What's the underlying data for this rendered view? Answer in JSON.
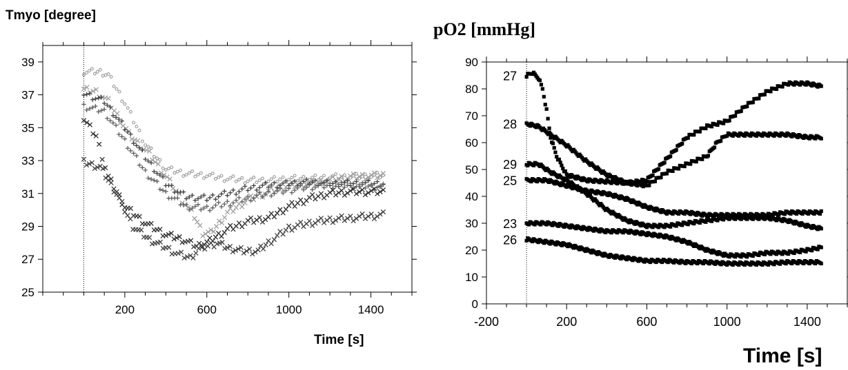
{
  "chart_data": [
    {
      "type": "scatter",
      "title": "Tmyo [degree]",
      "xlabel": "Time [s]",
      "ylabel": "",
      "xlim": [
        -200,
        1600
      ],
      "ylim": [
        25,
        40
      ],
      "x_ticks": [
        200,
        600,
        1000,
        1400
      ],
      "y_ticks": [
        25,
        27,
        29,
        31,
        33,
        35,
        37,
        39
      ],
      "grid": false,
      "vline_at": 0,
      "series": [
        {
          "color": "#a0a0a0",
          "marker": "o",
          "points": [
            [
              0,
              38.4
            ],
            [
              80,
              38.4
            ],
            [
              120,
              38.2
            ],
            [
              200,
              36.5
            ],
            [
              300,
              34.0
            ],
            [
              400,
              32.5
            ],
            [
              500,
              32.2
            ],
            [
              600,
              32.1
            ],
            [
              700,
              31.9
            ],
            [
              800,
              31.8
            ],
            [
              900,
              31.8
            ],
            [
              1000,
              31.9
            ],
            [
              1100,
              31.9
            ],
            [
              1200,
              32.0
            ],
            [
              1300,
              32.0
            ],
            [
              1460,
              32.1
            ]
          ]
        },
        {
          "color": "#a0a0a0",
          "marker": "x",
          "points": [
            [
              0,
              37.3
            ],
            [
              60,
              37.2
            ],
            [
              120,
              36.6
            ],
            [
              220,
              34.6
            ],
            [
              320,
              33.4
            ],
            [
              420,
              31.7
            ],
            [
              480,
              30.6
            ],
            [
              540,
              29.6
            ],
            [
              580,
              28.6
            ],
            [
              620,
              28.6
            ],
            [
              700,
              29.8
            ],
            [
              800,
              30.6
            ],
            [
              900,
              31.1
            ],
            [
              1000,
              31.5
            ],
            [
              1100,
              31.6
            ],
            [
              1200,
              31.8
            ],
            [
              1300,
              32.0
            ],
            [
              1460,
              32.1
            ]
          ]
        },
        {
          "color": "#404040",
          "marker": "+",
          "points": [
            [
              0,
              37.1
            ],
            [
              100,
              36.6
            ],
            [
              200,
              35.0
            ],
            [
              300,
              33.2
            ],
            [
              400,
              31.6
            ],
            [
              500,
              30.8
            ],
            [
              600,
              30.7
            ],
            [
              700,
              31.0
            ],
            [
              800,
              31.3
            ],
            [
              900,
              31.5
            ],
            [
              1000,
              31.6
            ],
            [
              1100,
              31.7
            ],
            [
              1200,
              31.6
            ],
            [
              1300,
              31.6
            ],
            [
              1460,
              31.6
            ]
          ]
        },
        {
          "color": "#606060",
          "marker": "+",
          "points": [
            [
              0,
              36.3
            ],
            [
              100,
              36.0
            ],
            [
              200,
              34.2
            ],
            [
              300,
              32.3
            ],
            [
              400,
              31.0
            ],
            [
              500,
              30.2
            ],
            [
              600,
              30.1
            ],
            [
              700,
              30.4
            ],
            [
              800,
              30.7
            ],
            [
              900,
              31.0
            ],
            [
              1000,
              31.2
            ],
            [
              1100,
              31.4
            ],
            [
              1200,
              31.5
            ],
            [
              1300,
              31.5
            ],
            [
              1460,
              31.4
            ]
          ]
        },
        {
          "color": "#303030",
          "marker": "x",
          "points": [
            [
              0,
              35.5
            ],
            [
              60,
              34.5
            ],
            [
              120,
              32.0
            ],
            [
              200,
              30.2
            ],
            [
              300,
              29.2
            ],
            [
              400,
              28.5
            ],
            [
              480,
              28.2
            ],
            [
              550,
              27.8
            ],
            [
              600,
              28.0
            ],
            [
              700,
              28.8
            ],
            [
              800,
              29.3
            ],
            [
              900,
              29.5
            ],
            [
              1000,
              30.2
            ],
            [
              1100,
              30.7
            ],
            [
              1200,
              31.0
            ],
            [
              1300,
              31.1
            ],
            [
              1460,
              31.1
            ]
          ]
        },
        {
          "color": "#404040",
          "marker": "x",
          "points": [
            [
              0,
              32.9
            ],
            [
              80,
              32.6
            ],
            [
              160,
              31.0
            ],
            [
              240,
              29.0
            ],
            [
              320,
              28.2
            ],
            [
              400,
              27.7
            ],
            [
              460,
              27.3
            ],
            [
              520,
              27.1
            ],
            [
              560,
              27.6
            ],
            [
              650,
              28.0
            ],
            [
              700,
              27.7
            ],
            [
              780,
              27.5
            ],
            [
              850,
              27.5
            ],
            [
              900,
              28.0
            ],
            [
              1000,
              28.9
            ],
            [
              1100,
              29.2
            ],
            [
              1200,
              29.4
            ],
            [
              1300,
              29.5
            ],
            [
              1460,
              29.7
            ]
          ]
        }
      ]
    },
    {
      "type": "scatter",
      "title": "pO2 [mmHg]",
      "xlabel": "Time [s]",
      "ylabel": "",
      "xlim": [
        -200,
        1600
      ],
      "ylim": [
        0,
        90
      ],
      "x_ticks": [
        -200,
        200,
        600,
        1000,
        1400
      ],
      "y_ticks": [
        0,
        10,
        20,
        30,
        40,
        50,
        60,
        70,
        80,
        90
      ],
      "grid": false,
      "vline_at": 0,
      "series": [
        {
          "label": "27",
          "color": "#000000",
          "points": [
            [
              0,
              85
            ],
            [
              30,
              86
            ],
            [
              60,
              84
            ],
            [
              80,
              80
            ],
            [
              100,
              72
            ],
            [
              120,
              62
            ],
            [
              150,
              55
            ],
            [
              200,
              48
            ],
            [
              300,
              46
            ],
            [
              400,
              45.5
            ],
            [
              500,
              45
            ],
            [
              600,
              46
            ],
            [
              700,
              54
            ],
            [
              800,
              62
            ],
            [
              900,
              66
            ],
            [
              1000,
              68
            ],
            [
              1100,
              74
            ],
            [
              1200,
              79
            ],
            [
              1300,
              82
            ],
            [
              1400,
              82
            ],
            [
              1470,
              81
            ]
          ]
        },
        {
          "label": "28",
          "color": "#000000",
          "points": [
            [
              0,
              67
            ],
            [
              60,
              66
            ],
            [
              120,
              63
            ],
            [
              200,
              59
            ],
            [
              300,
              53
            ],
            [
              400,
              48
            ],
            [
              500,
              45
            ],
            [
              600,
              44
            ],
            [
              700,
              49
            ],
            [
              800,
              52
            ],
            [
              900,
              55
            ],
            [
              950,
              60
            ],
            [
              1000,
              63
            ],
            [
              1100,
              63
            ],
            [
              1200,
              63
            ],
            [
              1300,
              63
            ],
            [
              1400,
              62
            ],
            [
              1470,
              62
            ]
          ]
        },
        {
          "label": "29",
          "color": "#000000",
          "points": [
            [
              0,
              52
            ],
            [
              60,
              52
            ],
            [
              120,
              49
            ],
            [
              200,
              46
            ],
            [
              300,
              41
            ],
            [
              400,
              35
            ],
            [
              500,
              31
            ],
            [
              600,
              29
            ],
            [
              700,
              29
            ],
            [
              800,
              30
            ],
            [
              900,
              31
            ],
            [
              1000,
              32
            ],
            [
              1100,
              32
            ],
            [
              1200,
              32
            ],
            [
              1300,
              31
            ],
            [
              1400,
              29
            ],
            [
              1470,
              28
            ]
          ]
        },
        {
          "label": "25",
          "color": "#000000",
          "points": [
            [
              0,
              46
            ],
            [
              100,
              46
            ],
            [
              200,
              44
            ],
            [
              300,
              42
            ],
            [
              400,
              41
            ],
            [
              500,
              39
            ],
            [
              600,
              36
            ],
            [
              700,
              34
            ],
            [
              800,
              34
            ],
            [
              900,
              33
            ],
            [
              1000,
              33
            ],
            [
              1100,
              33
            ],
            [
              1200,
              33
            ],
            [
              1300,
              34
            ],
            [
              1400,
              34
            ],
            [
              1470,
              34
            ]
          ]
        },
        {
          "label": "23",
          "color": "#000000",
          "points": [
            [
              0,
              30
            ],
            [
              100,
              30
            ],
            [
              200,
              29
            ],
            [
              300,
              28
            ],
            [
              400,
              27
            ],
            [
              500,
              27
            ],
            [
              600,
              26
            ],
            [
              700,
              25
            ],
            [
              800,
              23
            ],
            [
              900,
              20
            ],
            [
              1000,
              18
            ],
            [
              1100,
              18
            ],
            [
              1200,
              19
            ],
            [
              1300,
              19
            ],
            [
              1400,
              20
            ],
            [
              1470,
              21
            ]
          ]
        },
        {
          "label": "26",
          "color": "#000000",
          "points": [
            [
              0,
              24
            ],
            [
              100,
              23
            ],
            [
              200,
              22
            ],
            [
              300,
              20
            ],
            [
              400,
              18
            ],
            [
              500,
              17
            ],
            [
              600,
              16
            ],
            [
              700,
              16
            ],
            [
              800,
              15.5
            ],
            [
              900,
              15.5
            ],
            [
              1000,
              15
            ],
            [
              1100,
              15
            ],
            [
              1200,
              15
            ],
            [
              1300,
              15.5
            ],
            [
              1400,
              15.5
            ],
            [
              1470,
              15.5
            ]
          ]
        }
      ]
    }
  ]
}
